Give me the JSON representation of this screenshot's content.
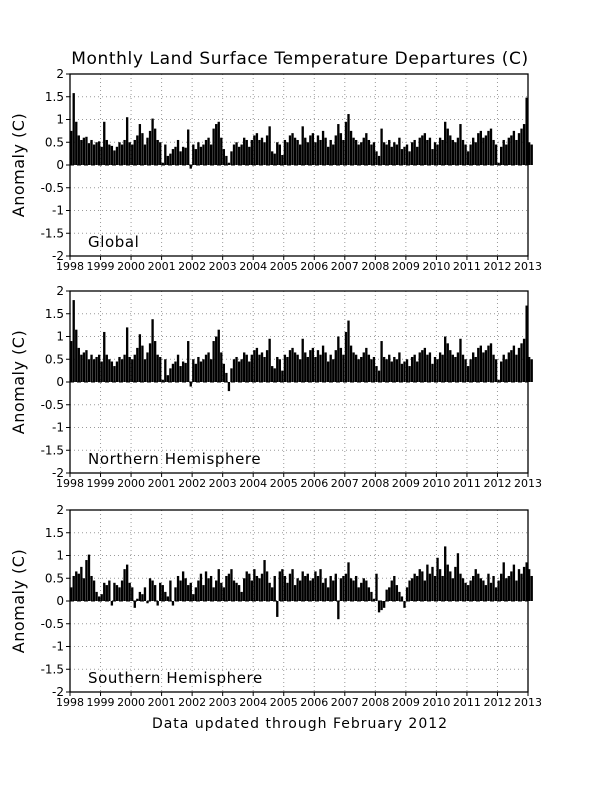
{
  "title": "Monthly Land Surface Temperature Departures (C)",
  "footer": "Data updated through February 2012",
  "chart_data": [
    {
      "type": "bar",
      "panel_label": "Global",
      "ylabel": "Anomaly (C)",
      "xlabel": "",
      "xlim": [
        1998,
        2013
      ],
      "ylim": [
        -2,
        2
      ],
      "yticks": [
        -2,
        -1.5,
        -1,
        -0.5,
        0,
        0.5,
        1,
        1.5,
        2
      ],
      "ytick_labels": [
        "-2",
        "-1.5",
        "-1",
        "-0.5",
        "0",
        "0.5",
        "1",
        "1.5",
        "2"
      ],
      "xticks": [
        1998,
        1999,
        2000,
        2001,
        2002,
        2003,
        2004,
        2005,
        2006,
        2007,
        2008,
        2009,
        2010,
        2011,
        2012,
        2013
      ],
      "grid": true,
      "x_start": "1998-01",
      "x_end": "2012-02",
      "yearly_values": [
        [
          0.75,
          1.58,
          0.95,
          0.65,
          0.55,
          0.6,
          0.62,
          0.48,
          0.55,
          0.45,
          0.5,
          0.52
        ],
        [
          0.4,
          0.95,
          0.55,
          0.45,
          0.42,
          0.32,
          0.4,
          0.5,
          0.45,
          0.55,
          1.05,
          0.5
        ],
        [
          0.45,
          0.55,
          0.65,
          0.9,
          0.7,
          0.45,
          0.6,
          0.75,
          1.02,
          0.8,
          0.55,
          0.5
        ],
        [
          0.05,
          0.45,
          0.2,
          0.25,
          0.35,
          0.4,
          0.55,
          0.3,
          0.4,
          0.38,
          0.78,
          -0.08
        ],
        [
          0.45,
          0.35,
          0.5,
          0.4,
          0.45,
          0.55,
          0.6,
          0.45,
          0.8,
          0.9,
          0.95,
          0.6
        ],
        [
          0.35,
          0.2,
          0.05,
          0.3,
          0.45,
          0.5,
          0.4,
          0.45,
          0.6,
          0.55,
          0.4,
          0.55
        ],
        [
          0.65,
          0.7,
          0.55,
          0.6,
          0.5,
          0.65,
          0.85,
          0.3,
          0.25,
          0.5,
          0.45,
          0.22
        ],
        [
          0.55,
          0.5,
          0.65,
          0.7,
          0.6,
          0.55,
          0.45,
          0.85,
          0.6,
          0.5,
          0.65,
          0.7
        ],
        [
          0.5,
          0.65,
          0.55,
          0.75,
          0.6,
          0.4,
          0.55,
          0.45,
          0.65,
          0.9,
          0.7,
          0.55
        ],
        [
          0.95,
          1.12,
          0.75,
          0.6,
          0.55,
          0.45,
          0.5,
          0.6,
          0.7,
          0.55,
          0.45,
          0.5
        ],
        [
          0.3,
          0.2,
          0.8,
          0.5,
          0.45,
          0.55,
          0.4,
          0.5,
          0.45,
          0.6,
          0.35,
          0.4
        ],
        [
          0.45,
          0.3,
          0.5,
          0.55,
          0.4,
          0.6,
          0.65,
          0.7,
          0.55,
          0.6,
          0.35,
          0.5
        ],
        [
          0.45,
          0.6,
          0.55,
          0.95,
          0.8,
          0.65,
          0.55,
          0.5,
          0.6,
          0.9,
          0.55,
          0.45
        ],
        [
          0.3,
          0.45,
          0.6,
          0.5,
          0.7,
          0.75,
          0.6,
          0.65,
          0.75,
          0.8,
          0.55,
          0.45
        ],
        [
          0.05,
          0.4,
          0.55,
          0.45,
          0.6,
          0.65,
          0.75,
          0.55,
          0.7,
          0.8,
          0.9,
          1.48
        ],
        [
          0.5,
          0.45
        ]
      ]
    },
    {
      "type": "bar",
      "panel_label": "Northern Hemisphere",
      "ylabel": "Anomaly (C)",
      "xlabel": "",
      "xlim": [
        1998,
        2013
      ],
      "ylim": [
        -2,
        2
      ],
      "yticks": [
        -2,
        -1.5,
        -1,
        -0.5,
        0,
        0.5,
        1,
        1.5,
        2
      ],
      "ytick_labels": [
        "-2",
        "-1.5",
        "-1",
        "-0.5",
        "0",
        "0.5",
        "1",
        "1.5",
        "2"
      ],
      "xticks": [
        1998,
        1999,
        2000,
        2001,
        2002,
        2003,
        2004,
        2005,
        2006,
        2007,
        2008,
        2009,
        2010,
        2011,
        2012,
        2013
      ],
      "grid": true,
      "x_start": "1998-01",
      "x_end": "2012-02",
      "yearly_values": [
        [
          0.9,
          1.8,
          1.15,
          0.75,
          0.6,
          0.65,
          0.7,
          0.5,
          0.6,
          0.5,
          0.55,
          0.6
        ],
        [
          0.45,
          1.1,
          0.6,
          0.5,
          0.45,
          0.35,
          0.45,
          0.55,
          0.5,
          0.6,
          1.2,
          0.55
        ],
        [
          0.5,
          0.6,
          0.75,
          1.05,
          0.8,
          0.5,
          0.65,
          0.85,
          1.38,
          0.9,
          0.6,
          0.55
        ],
        [
          0.05,
          0.5,
          0.15,
          0.3,
          0.4,
          0.45,
          0.6,
          0.35,
          0.45,
          0.42,
          0.9,
          -0.1
        ],
        [
          0.5,
          0.4,
          0.55,
          0.45,
          0.5,
          0.6,
          0.65,
          0.5,
          0.9,
          1.0,
          1.15,
          0.65
        ],
        [
          0.4,
          0.2,
          -0.2,
          0.3,
          0.5,
          0.55,
          0.45,
          0.5,
          0.65,
          0.6,
          0.45,
          0.6
        ],
        [
          0.7,
          0.75,
          0.6,
          0.65,
          0.55,
          0.7,
          0.95,
          0.35,
          0.3,
          0.55,
          0.5,
          0.25
        ],
        [
          0.6,
          0.55,
          0.7,
          0.75,
          0.65,
          0.6,
          0.5,
          0.95,
          0.65,
          0.55,
          0.7,
          0.75
        ],
        [
          0.55,
          0.7,
          0.6,
          0.8,
          0.65,
          0.45,
          0.6,
          0.5,
          0.7,
          1.0,
          0.75,
          0.6
        ],
        [
          1.1,
          1.35,
          0.8,
          0.65,
          0.6,
          0.5,
          0.55,
          0.65,
          0.75,
          0.6,
          0.5,
          0.55
        ],
        [
          0.35,
          0.25,
          0.9,
          0.55,
          0.5,
          0.6,
          0.45,
          0.55,
          0.5,
          0.65,
          0.4,
          0.45
        ],
        [
          0.5,
          0.35,
          0.55,
          0.6,
          0.45,
          0.65,
          0.7,
          0.75,
          0.6,
          0.65,
          0.4,
          0.55
        ],
        [
          0.5,
          0.65,
          0.6,
          1.0,
          0.85,
          0.7,
          0.6,
          0.55,
          0.65,
          0.95,
          0.6,
          0.5
        ],
        [
          0.35,
          0.5,
          0.65,
          0.55,
          0.75,
          0.8,
          0.65,
          0.7,
          0.8,
          0.85,
          0.6,
          0.5
        ],
        [
          0.05,
          0.45,
          0.6,
          0.5,
          0.65,
          0.7,
          0.8,
          0.6,
          0.75,
          0.85,
          0.95,
          1.68
        ],
        [
          0.55,
          0.5
        ]
      ]
    },
    {
      "type": "bar",
      "panel_label": "Southern Hemisphere",
      "ylabel": "Anomaly (C)",
      "xlabel": "",
      "xlim": [
        1998,
        2013
      ],
      "ylim": [
        -2,
        2
      ],
      "yticks": [
        -2,
        -1.5,
        -1,
        -0.5,
        0,
        0.5,
        1,
        1.5,
        2
      ],
      "ytick_labels": [
        "-2",
        "-1.5",
        "-1",
        "-0.5",
        "0",
        "0.5",
        "1",
        "1.5",
        "2"
      ],
      "xticks": [
        1998,
        1999,
        2000,
        2001,
        2002,
        2003,
        2004,
        2005,
        2006,
        2007,
        2008,
        2009,
        2010,
        2011,
        2012,
        2013
      ],
      "grid": true,
      "x_start": "1998-01",
      "x_end": "2012-02",
      "yearly_values": [
        [
          0.3,
          0.55,
          0.65,
          0.6,
          0.75,
          0.5,
          0.9,
          1.02,
          0.55,
          0.45,
          0.2,
          0.1
        ],
        [
          0.15,
          0.4,
          0.35,
          0.45,
          -0.1,
          0.4,
          0.35,
          0.3,
          0.45,
          0.7,
          0.8,
          0.4
        ],
        [
          0.3,
          -0.15,
          0.05,
          0.2,
          0.15,
          0.3,
          -0.05,
          0.5,
          0.45,
          0.35,
          -0.1,
          0.4
        ],
        [
          0.35,
          0.2,
          0.1,
          0.45,
          -0.1,
          0.3,
          0.55,
          0.45,
          0.65,
          0.5,
          0.35,
          0.4
        ],
        [
          0.15,
          0.3,
          0.45,
          0.6,
          0.35,
          0.65,
          0.5,
          0.55,
          0.3,
          0.45,
          0.7,
          0.4
        ],
        [
          0.3,
          0.55,
          0.6,
          0.7,
          0.45,
          0.4,
          0.35,
          0.2,
          0.5,
          0.65,
          0.6,
          0.45
        ],
        [
          0.7,
          0.55,
          0.5,
          0.6,
          0.9,
          0.65,
          0.4,
          0.3,
          0.55,
          -0.35,
          0.65,
          0.7
        ],
        [
          0.55,
          0.4,
          0.6,
          0.7,
          0.35,
          0.5,
          0.45,
          0.65,
          0.55,
          0.6,
          0.45,
          0.5
        ],
        [
          0.65,
          0.55,
          0.7,
          0.4,
          0.5,
          0.3,
          0.55,
          0.45,
          0.6,
          -0.4,
          0.5,
          0.55
        ],
        [
          0.6,
          0.85,
          0.5,
          0.45,
          0.55,
          0.3,
          0.4,
          0.5,
          0.45,
          0.3,
          0.2,
          0.05
        ],
        [
          0.6,
          -0.25,
          -0.2,
          -0.15,
          0.25,
          0.3,
          0.45,
          0.55,
          0.35,
          0.2,
          0.1,
          -0.15
        ],
        [
          0.3,
          0.45,
          0.5,
          0.6,
          0.55,
          0.7,
          0.65,
          0.45,
          0.8,
          0.6,
          0.75,
          0.55
        ],
        [
          0.95,
          0.7,
          0.55,
          1.2,
          0.8,
          0.65,
          0.5,
          0.75,
          1.05,
          0.6,
          0.5,
          0.4
        ],
        [
          0.35,
          0.45,
          0.55,
          0.7,
          0.6,
          0.5,
          0.45,
          0.35,
          0.6,
          0.4,
          0.55,
          0.3
        ],
        [
          0.45,
          0.6,
          0.85,
          0.5,
          0.55,
          0.65,
          0.8,
          0.45,
          0.7,
          0.6,
          0.75,
          0.85
        ],
        [
          0.7,
          0.55
        ]
      ]
    }
  ]
}
